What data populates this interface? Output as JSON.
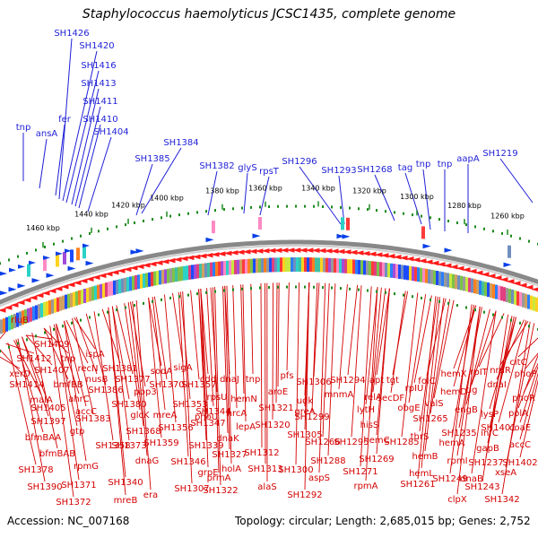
{
  "title": "Staphylococcus haemolyticus JCSC1435, complete genome",
  "footer": {
    "accession": "Accession: NC_007168",
    "stats": "Topology: circular; Length: 2,685,015 bp; Genes: 2,752"
  },
  "colors": {
    "top_label": "#1f1fd6",
    "bottom_label": "#d40000",
    "backbone": "#888888",
    "tick": "#1a8a1a",
    "forward_arrow": "#0a3fe8",
    "reverse_arrow": "#ff1a1a"
  },
  "ticks": [
    {
      "label": "1460 kbp"
    },
    {
      "label": "1440 kbp"
    },
    {
      "label": "1420 kbp"
    },
    {
      "label": "1400 kbp"
    },
    {
      "label": "1380 kbp"
    },
    {
      "label": "1360 kbp"
    },
    {
      "label": "1340 kbp"
    },
    {
      "label": "1320 kbp"
    },
    {
      "label": "1300 kbp"
    },
    {
      "label": "1280 kbp"
    },
    {
      "label": "1260 kbp"
    }
  ],
  "top_labels": [
    {
      "text": "tnp"
    },
    {
      "text": "ansA"
    },
    {
      "text": "fer"
    },
    {
      "text": "SH1426"
    },
    {
      "text": "SH1420"
    },
    {
      "text": "SH1416"
    },
    {
      "text": "SH1413"
    },
    {
      "text": "SH1411"
    },
    {
      "text": "SH1410"
    },
    {
      "text": "SH1404"
    },
    {
      "text": "SH1385"
    },
    {
      "text": "SH1384"
    },
    {
      "text": "SH1382"
    },
    {
      "text": "glyS"
    },
    {
      "text": "rpsT"
    },
    {
      "text": "SH1296"
    },
    {
      "text": "SH1293"
    },
    {
      "text": "SH1268"
    },
    {
      "text": "tag"
    },
    {
      "text": "tnp"
    },
    {
      "text": "tnp"
    },
    {
      "text": "aapA"
    },
    {
      "text": "SH1219"
    }
  ],
  "bottom_labels": [
    {
      "text": "rluB"
    },
    {
      "text": "SH1409"
    },
    {
      "text": "SH1412"
    },
    {
      "text": "tnp"
    },
    {
      "text": "ispA"
    },
    {
      "text": "xerD"
    },
    {
      "text": "SH1407"
    },
    {
      "text": "recN"
    },
    {
      "text": "SH1381"
    },
    {
      "text": "sodA"
    },
    {
      "text": "sigA"
    },
    {
      "text": "SH1414"
    },
    {
      "text": "bmfBB"
    },
    {
      "text": "nusB"
    },
    {
      "text": "SH1377"
    },
    {
      "text": "SH1370"
    },
    {
      "text": "SH1357"
    },
    {
      "text": "cdd"
    },
    {
      "text": "dnaJ"
    },
    {
      "text": "tnp"
    },
    {
      "text": "pfs"
    },
    {
      "text": "SH1306"
    },
    {
      "text": "SH1294"
    },
    {
      "text": "apt"
    },
    {
      "text": "tgt"
    },
    {
      "text": "malA"
    },
    {
      "text": "ahrC"
    },
    {
      "text": "SH1386"
    },
    {
      "text": "pbp3"
    },
    {
      "text": "rpsU"
    },
    {
      "text": "hemN"
    },
    {
      "text": "aroE"
    },
    {
      "text": "udk"
    },
    {
      "text": "mnmA"
    },
    {
      "text": "relA"
    },
    {
      "text": "rpIU"
    },
    {
      "text": "folC"
    },
    {
      "text": "hemX"
    },
    {
      "text": "rpIT"
    },
    {
      "text": "nrdR"
    },
    {
      "text": "SH1405"
    },
    {
      "text": "accC"
    },
    {
      "text": "SH1380"
    },
    {
      "text": "SH1353"
    },
    {
      "text": "SH1344"
    },
    {
      "text": "hrcA"
    },
    {
      "text": "SH1321"
    },
    {
      "text": "greA"
    },
    {
      "text": "lytH"
    },
    {
      "text": "obgE"
    },
    {
      "text": "valS"
    },
    {
      "text": "hemD"
    },
    {
      "text": "tig"
    },
    {
      "text": "dnaI"
    },
    {
      "text": "phoP"
    },
    {
      "text": "citC"
    },
    {
      "text": "SH1397"
    },
    {
      "text": "SH1383"
    },
    {
      "text": "glcK"
    },
    {
      "text": "mreA"
    },
    {
      "text": "phoU"
    },
    {
      "text": "lepA"
    },
    {
      "text": "SH1299"
    },
    {
      "text": "hisS"
    },
    {
      "text": "secDF"
    },
    {
      "text": "SH1265"
    },
    {
      "text": "engB"
    },
    {
      "text": "phoR"
    },
    {
      "text": "bfmBAA"
    },
    {
      "text": "gtp"
    },
    {
      "text": "SH1368"
    },
    {
      "text": "SH1356"
    },
    {
      "text": "SH1347"
    },
    {
      "text": "dnaK"
    },
    {
      "text": "SH1320"
    },
    {
      "text": "SH1305"
    },
    {
      "text": "SH1295"
    },
    {
      "text": "SH1285"
    },
    {
      "text": "hemA"
    },
    {
      "text": "lysP"
    },
    {
      "text": "polA"
    },
    {
      "text": "bfmBAB"
    },
    {
      "text": "SH1373"
    },
    {
      "text": "SH1359"
    },
    {
      "text": "SH1339"
    },
    {
      "text": "SH1327"
    },
    {
      "text": "SH1312"
    },
    {
      "text": "SH1266"
    },
    {
      "text": "hemC"
    },
    {
      "text": "thrS"
    },
    {
      "text": "SH1235"
    },
    {
      "text": "infC"
    },
    {
      "text": "coaE"
    },
    {
      "text": "SH1401"
    },
    {
      "text": "accC"
    },
    {
      "text": "SH1378"
    },
    {
      "text": "rpmG"
    },
    {
      "text": "SH1358"
    },
    {
      "text": "dnaG"
    },
    {
      "text": "SH1346"
    },
    {
      "text": "grpE"
    },
    {
      "text": "holA"
    },
    {
      "text": "SH1313"
    },
    {
      "text": "SH1300"
    },
    {
      "text": "SH1288"
    },
    {
      "text": "SH1269"
    },
    {
      "text": "hemB"
    },
    {
      "text": "rpmI"
    },
    {
      "text": "gapB"
    },
    {
      "text": "SH1237"
    },
    {
      "text": "SH1402"
    },
    {
      "text": "SH1390"
    },
    {
      "text": "SH1371"
    },
    {
      "text": "SH1340"
    },
    {
      "text": "prmA"
    },
    {
      "text": "SH1322"
    },
    {
      "text": "alaS"
    },
    {
      "text": "aspS"
    },
    {
      "text": "SH1271"
    },
    {
      "text": "hemL"
    },
    {
      "text": "SH1249"
    },
    {
      "text": "dnaB"
    },
    {
      "text": "xseA"
    },
    {
      "text": "SH1372"
    },
    {
      "text": "mreB"
    },
    {
      "text": "era"
    },
    {
      "text": "SH1307"
    },
    {
      "text": "SH1292"
    },
    {
      "text": "rpmA"
    },
    {
      "text": "SH1261"
    },
    {
      "text": "clpX"
    },
    {
      "text": "SH1243"
    },
    {
      "text": "SH1342"
    }
  ]
}
